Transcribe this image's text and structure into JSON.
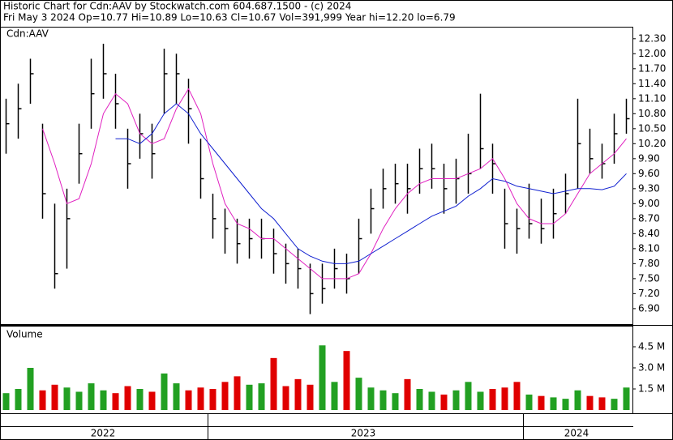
{
  "chart_data": {
    "type": "ohlc",
    "title": "Historic Chart for Cdn:AAV by Stockwatch.com 604.687.1500 - (c) 2024",
    "subtitle": "Fri May  3 2024  Op=10.77  Hi=10.89  Lo=10.63  Cl=10.67  Vol=391,999  Year hi=12.20  lo=6.79",
    "symbol": "Cdn:AAV",
    "volume_label": "Volume",
    "x_labels": [
      "2022",
      "2023",
      "2024"
    ],
    "bar_color": "#000000",
    "up_color": "#22a022",
    "down_color": "#e00000",
    "high": [
      11.1,
      11.4,
      11.9,
      10.6,
      9.0,
      9.3,
      10.6,
      11.9,
      12.2,
      11.6,
      10.5,
      10.8,
      10.6,
      12.1,
      12.0,
      11.5,
      10.3,
      9.2,
      8.9,
      8.7,
      8.7,
      8.7,
      8.5,
      8.2,
      8.1,
      7.8,
      7.8,
      8.1,
      8.0,
      8.7,
      9.3,
      9.7,
      9.8,
      9.8,
      10.1,
      10.2,
      9.8,
      9.9,
      10.4,
      11.2,
      10.2,
      9.3,
      8.9,
      9.4,
      9.1,
      9.3,
      9.6,
      11.1,
      10.5,
      10.2,
      10.8,
      11.1
    ],
    "low": [
      10.0,
      10.3,
      11.0,
      8.7,
      7.3,
      7.7,
      9.4,
      10.5,
      11.1,
      10.5,
      9.3,
      9.9,
      9.5,
      10.8,
      11.0,
      10.2,
      9.1,
      8.3,
      8.0,
      7.8,
      7.9,
      7.9,
      7.6,
      7.4,
      7.3,
      6.79,
      7.0,
      7.3,
      7.2,
      7.6,
      8.4,
      8.9,
      9.0,
      8.8,
      9.2,
      9.3,
      8.8,
      9.0,
      9.2,
      9.7,
      9.2,
      8.1,
      8.0,
      8.3,
      8.2,
      8.3,
      8.8,
      9.3,
      9.6,
      9.5,
      9.8,
      10.4
    ],
    "close": [
      10.6,
      10.9,
      11.6,
      9.2,
      7.6,
      8.7,
      10.0,
      11.2,
      11.6,
      11.0,
      9.8,
      10.4,
      10.0,
      11.6,
      11.6,
      10.9,
      9.5,
      8.7,
      8.5,
      8.2,
      8.3,
      8.3,
      8.0,
      7.8,
      7.7,
      7.2,
      7.3,
      7.7,
      7.5,
      8.3,
      8.9,
      9.3,
      9.4,
      9.3,
      9.7,
      9.7,
      9.3,
      9.5,
      9.6,
      10.1,
      9.8,
      8.6,
      8.5,
      8.6,
      8.5,
      8.8,
      9.2,
      10.2,
      9.9,
      9.8,
      10.4,
      10.7
    ],
    "series": [
      {
        "color": "#e020c0",
        "values": [
          null,
          null,
          null,
          10.5,
          9.8,
          9.0,
          9.1,
          9.8,
          10.8,
          11.2,
          11.0,
          10.4,
          10.2,
          10.3,
          10.9,
          11.3,
          10.8,
          9.8,
          9.0,
          8.6,
          8.5,
          8.3,
          8.3,
          8.1,
          7.9,
          7.7,
          7.5,
          7.5,
          7.5,
          7.6,
          8.0,
          8.5,
          8.9,
          9.2,
          9.4,
          9.5,
          9.5,
          9.5,
          9.6,
          9.7,
          9.9,
          9.5,
          9.0,
          8.7,
          8.6,
          8.6,
          8.8,
          9.2,
          9.6,
          9.8,
          10.0,
          10.3
        ]
      },
      {
        "color": "#1020d0",
        "values": [
          null,
          null,
          null,
          null,
          null,
          null,
          null,
          null,
          null,
          10.3,
          10.3,
          10.2,
          10.4,
          10.8,
          11.0,
          10.8,
          10.4,
          10.1,
          9.8,
          9.5,
          9.2,
          8.9,
          8.7,
          8.4,
          8.1,
          7.95,
          7.85,
          7.8,
          7.8,
          7.85,
          8.0,
          8.15,
          8.3,
          8.45,
          8.6,
          8.75,
          8.85,
          8.95,
          9.15,
          9.3,
          9.5,
          9.45,
          9.35,
          9.3,
          9.25,
          9.2,
          9.25,
          9.3,
          9.3,
          9.28,
          9.35,
          9.6
        ]
      }
    ],
    "volume": [
      1.2,
      1.5,
      3.0,
      1.4,
      1.8,
      1.6,
      1.3,
      1.9,
      1.4,
      1.2,
      1.7,
      1.5,
      1.3,
      2.6,
      1.9,
      1.4,
      1.6,
      1.5,
      2.0,
      2.4,
      1.8,
      1.9,
      3.7,
      1.7,
      2.2,
      1.8,
      4.6,
      2.0,
      4.2,
      2.3,
      1.6,
      1.4,
      1.2,
      2.2,
      1.5,
      1.3,
      1.1,
      1.4,
      2.0,
      1.3,
      1.5,
      1.6,
      2.0,
      1.1,
      1.0,
      0.9,
      0.8,
      1.4,
      1.0,
      0.9,
      0.8,
      1.6
    ],
    "ylim": [
      6.59,
      12.54
    ],
    "yticks": [
      {
        "value": 6.9,
        "label": "6.90"
      },
      {
        "value": 7.2,
        "label": "7.20"
      },
      {
        "value": 7.5,
        "label": "7.50"
      },
      {
        "value": 7.8,
        "label": "7.80"
      },
      {
        "value": 8.1,
        "label": "8.10"
      },
      {
        "value": 8.4,
        "label": "8.40"
      },
      {
        "value": 8.7,
        "label": "8.70"
      },
      {
        "value": 9.0,
        "label": "9.00"
      },
      {
        "value": 9.3,
        "label": "9.30"
      },
      {
        "value": 9.6,
        "label": "9.60"
      },
      {
        "value": 9.9,
        "label": "9.90"
      },
      {
        "value": 10.2,
        "label": "10.20"
      },
      {
        "value": 10.5,
        "label": "10.50"
      },
      {
        "value": 10.8,
        "label": "10.80"
      },
      {
        "value": 11.1,
        "label": "11.10"
      },
      {
        "value": 11.4,
        "label": "11.40"
      },
      {
        "value": 11.7,
        "label": "11.70"
      },
      {
        "value": 12.0,
        "label": "12.00"
      },
      {
        "value": 12.3,
        "label": "12.30"
      }
    ],
    "y2lim": [
      0,
      5.94
    ],
    "y2ticks": [
      {
        "value": 1.5,
        "label": "1.5 M"
      },
      {
        "value": 3.0,
        "label": "3.0 M"
      },
      {
        "value": 4.5,
        "label": "4.5 M"
      }
    ]
  }
}
